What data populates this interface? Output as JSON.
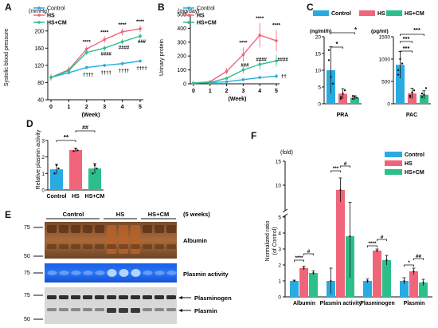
{
  "colors": {
    "control": "#29abe2",
    "hs": "#f0657a",
    "hscm": "#2dbf8a"
  },
  "legend": {
    "control": "Control",
    "hs": "HS",
    "hscm": "HS+CM"
  },
  "panelA": {
    "label": "A",
    "unit": "(mmHg)",
    "ylabel": "Systolic blood pressure",
    "xlabel": "(Week)",
    "ylim": [
      40,
      220
    ],
    "yticks": [
      "40",
      "80",
      "120",
      "160",
      "200"
    ],
    "xticks": [
      "0",
      "1",
      "2",
      "3",
      "4",
      "5"
    ],
    "sig_hs": [
      "****",
      "****",
      "****",
      "****"
    ],
    "sig_hscm": [
      "####",
      "####",
      "###"
    ],
    "sig_control_hs": [
      "††††",
      "††††",
      "††††",
      "††††"
    ]
  },
  "panelB": {
    "label": "B",
    "unit": "(mg/day)",
    "ylabel": "Urinary protein",
    "xlabel": "(Week)",
    "ylim": [
      0,
      500
    ],
    "yticks": [
      "0",
      "100",
      "200",
      "300",
      "400",
      "500"
    ],
    "xticks": [
      "0",
      "1",
      "2",
      "3",
      "4",
      "5"
    ],
    "sig_hs": [
      "****",
      "****",
      "****"
    ],
    "sig_hscm": [
      "###",
      "####",
      "####"
    ],
    "sig_extra": "††"
  },
  "panelC": {
    "label": "C",
    "pra": {
      "unit": "(ng/ml/h)",
      "xlabel": "PRA",
      "ylim": [
        0,
        20
      ],
      "yticks": [
        "0",
        "5",
        "10",
        "15",
        "20"
      ],
      "sig": [
        "*",
        "*"
      ]
    },
    "pac": {
      "unit": "(pg/ml)",
      "xlabel": "PAC",
      "ylim": [
        0,
        1500
      ],
      "yticks": [
        "0",
        "500",
        "1000",
        "1500"
      ],
      "sig": [
        "***",
        "***",
        "***"
      ]
    }
  },
  "panelD": {
    "label": "D",
    "ylabel": "Relative plasmin activity",
    "ylim": [
      0,
      3
    ],
    "yticks": [
      "0",
      "1",
      "2",
      "3"
    ],
    "xticks": [
      "Control",
      "HS",
      "HS+CM"
    ],
    "sig1": "**",
    "sig2": "##"
  },
  "panelE": {
    "label": "E",
    "groups": [
      "Control",
      "HS",
      "HS+CM"
    ],
    "timepoint": "(5 weeks)",
    "mw1": [
      "75",
      "50"
    ],
    "mw2": [
      "75",
      "50"
    ],
    "mw3": [
      "75",
      "50"
    ],
    "band1": "Albumin",
    "band2": "Plasmin activity",
    "band3a": "Plasminogen",
    "band3b": "Plasmin"
  },
  "panelF": {
    "label": "F",
    "unit": "(fold)",
    "ylabel": "Normalized ratio",
    "ylabel2": "(of Control)",
    "yticks": [
      "0",
      "1",
      "2",
      "3",
      "4",
      "5",
      "10",
      "15"
    ],
    "xticks": [
      "Albumin",
      "Plasmin activity",
      "Plasminogen",
      "Plasmin"
    ],
    "sig": [
      "****",
      "#",
      "***",
      "#",
      "****",
      "#",
      "*",
      "##"
    ]
  },
  "chart_data": [
    {
      "type": "line",
      "title": "",
      "xlabel": "(Week)",
      "ylabel": "Systolic blood pressure (mmHg)",
      "x": [
        0,
        1,
        2,
        3,
        4,
        5
      ],
      "ylim": [
        40,
        220
      ],
      "series": [
        {
          "name": "Control",
          "values": [
            92,
            103,
            115,
            120,
            124,
            130
          ]
        },
        {
          "name": "HS",
          "values": [
            92,
            110,
            158,
            180,
            198,
            205
          ]
        },
        {
          "name": "HS+CM",
          "values": [
            92,
            108,
            150,
            160,
            175,
            188
          ]
        }
      ]
    },
    {
      "type": "line",
      "title": "",
      "xlabel": "(Week)",
      "ylabel": "Urinary protein (mg/day)",
      "x": [
        0,
        1,
        2,
        3,
        4,
        5
      ],
      "ylim": [
        0,
        500
      ],
      "series": [
        {
          "name": "Control",
          "values": [
            5,
            8,
            15,
            30,
            45,
            55
          ]
        },
        {
          "name": "HS",
          "values": [
            5,
            15,
            90,
            210,
            350,
            310
          ]
        },
        {
          "name": "HS+CM",
          "values": [
            5,
            10,
            40,
            100,
            140,
            165
          ]
        }
      ]
    },
    {
      "type": "bar",
      "title": "",
      "xlabel": "PRA",
      "ylabel": "(ng/ml/h)",
      "categories": [
        "Control",
        "HS",
        "HS+CM"
      ],
      "values": [
        10,
        3,
        1.8
      ],
      "ylim": [
        0,
        20
      ]
    },
    {
      "type": "bar",
      "title": "",
      "xlabel": "PAC",
      "ylabel": "(pg/ml)",
      "categories": [
        "Control",
        "HS",
        "HS+CM"
      ],
      "values": [
        870,
        230,
        200
      ],
      "ylim": [
        0,
        1500
      ]
    },
    {
      "type": "bar",
      "title": "",
      "xlabel": "",
      "ylabel": "Relative plasmin activity",
      "categories": [
        "Control",
        "HS",
        "HS+CM"
      ],
      "values": [
        1.25,
        2.42,
        1.3
      ],
      "ylim": [
        0,
        3
      ]
    },
    {
      "type": "bar",
      "title": "",
      "xlabel": "",
      "ylabel": "Normalized ratio (of Control) (fold)",
      "categories": [
        "Albumin",
        "Plasmin activity",
        "Plasminogen",
        "Plasmin"
      ],
      "series": [
        {
          "name": "Control",
          "values": [
            1,
            1,
            1,
            1
          ]
        },
        {
          "name": "HS",
          "values": [
            1.8,
            9,
            2.9,
            1.6
          ]
        },
        {
          "name": "HS+CM",
          "values": [
            1.5,
            3.8,
            2.3,
            0.9
          ]
        }
      ]
    }
  ]
}
